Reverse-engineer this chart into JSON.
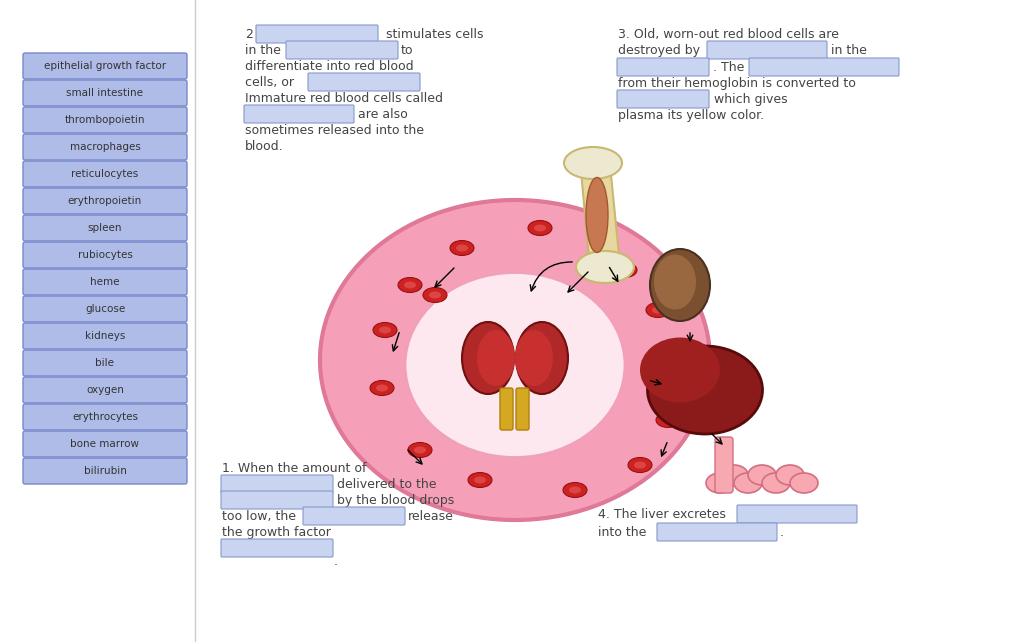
{
  "bg_color": "#ffffff",
  "button_color": "#b0bce8",
  "button_text_color": "#333333",
  "button_border_color": "#7788cc",
  "buttons": [
    "epithelial growth factor",
    "small intestine",
    "thrombopoietin",
    "macrophages",
    "reticulocytes",
    "erythropoietin",
    "spleen",
    "rubiocytes",
    "heme",
    "glucose",
    "kidneys",
    "bile",
    "oxygen",
    "erythrocytes",
    "bone marrow",
    "bilirubin"
  ],
  "blank_box_color": "#c8d4f0",
  "blank_box_edge": "#8899cc",
  "text_color": "#444444"
}
